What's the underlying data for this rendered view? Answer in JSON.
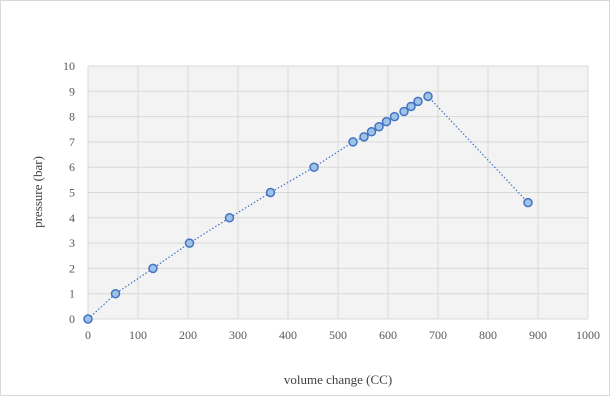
{
  "chart_data": {
    "type": "scatter",
    "title": "",
    "xlabel": "volume change (CC)",
    "ylabel": "pressure (bar)",
    "xlim": [
      0,
      1000
    ],
    "ylim": [
      0,
      10
    ],
    "xticks": [
      "0",
      "100",
      "200",
      "300",
      "400",
      "500",
      "600",
      "700",
      "800",
      "900",
      "1000"
    ],
    "yticks": [
      "0",
      "1",
      "2",
      "3",
      "4",
      "5",
      "6",
      "7",
      "8",
      "9",
      "10"
    ],
    "grid": true,
    "legend": "none",
    "line_style": "dotted",
    "series": [
      {
        "x": [
          0,
          55,
          130,
          203,
          283,
          365,
          452,
          530,
          552,
          567,
          582,
          597,
          613,
          632,
          646,
          660,
          680,
          880
        ],
        "y": [
          0,
          1,
          2,
          3,
          4,
          5,
          6,
          7,
          7.2,
          7.4,
          7.6,
          7.8,
          8.0,
          8.2,
          8.4,
          8.6,
          8.8,
          4.6
        ],
        "color": "#4472c4"
      }
    ]
  }
}
